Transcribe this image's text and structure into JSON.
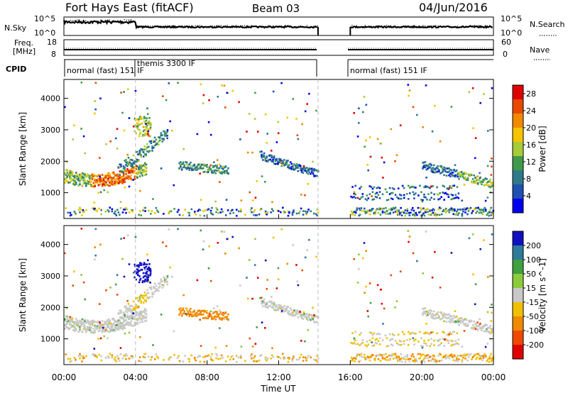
{
  "header": {
    "site": "Fort Hays East (fitACF)",
    "beam": "Beam 03",
    "date": "04/Jun/2016"
  },
  "top_panels": {
    "nsky_label": "N.Sky",
    "nsky_ticks": [
      "10^5",
      "10^0"
    ],
    "nsearch_label": "N.Search",
    "nsearch_ticks": [
      "10^5",
      "10^0"
    ],
    "freq_label_1": "Freq.",
    "freq_label_2": "[MHz]",
    "freq_ticks": [
      "18",
      "8"
    ],
    "nave_label": "Nave",
    "nave_ticks": [
      "60",
      "0"
    ],
    "cpid_label": "CPID",
    "cpid_segments": [
      {
        "label": "normal (fast) 151 IF",
        "start": 0,
        "end": 4.0
      },
      {
        "label": "themis 3300 IF",
        "start": 4.0,
        "end": 14.2
      },
      {
        "label": "normal (fast) 151 IF",
        "start": 16.0,
        "end": 24.0
      }
    ]
  },
  "chart_data": [
    {
      "type": "heatmap",
      "name": "power",
      "ylabel": "Slant Range [km]",
      "ylim": [
        180,
        4600
      ],
      "yticks": [
        1000,
        2000,
        3000,
        4000
      ],
      "xlim": [
        0,
        24
      ],
      "colorbar_label": "Power [dB]",
      "colorbar_ticks": [
        4,
        8,
        12,
        16,
        20,
        24,
        28
      ],
      "colorbar_range": [
        0,
        30
      ],
      "colors": [
        "#0000ee",
        "#1f4fb0",
        "#2e7a8a",
        "#3f9a4a",
        "#a8cc38",
        "#f5c400",
        "#f08a00",
        "#e84800",
        "#e00000"
      ]
    },
    {
      "type": "heatmap",
      "name": "velocity",
      "ylabel": "Slant Range [km]",
      "ylim": [
        180,
        4600
      ],
      "yticks": [
        1000,
        2000,
        3000,
        4000
      ],
      "xlim": [
        0,
        24
      ],
      "xticks": [
        "00:00",
        "04:00",
        "08:00",
        "12:00",
        "16:00",
        "20:00",
        "00:00"
      ],
      "xlabel": "Time UT",
      "colorbar_label": "Velocity [m s^-1]",
      "colorbar_ticks": [
        200,
        100,
        50,
        15,
        -15,
        -50,
        -100,
        -200
      ],
      "colors": [
        "#1010c0",
        "#2e7a9a",
        "#3fa040",
        "#8ccc3a",
        "#c8c8c8",
        "#f0c000",
        "#f08a00",
        "#f04800",
        "#e00000"
      ]
    }
  ]
}
